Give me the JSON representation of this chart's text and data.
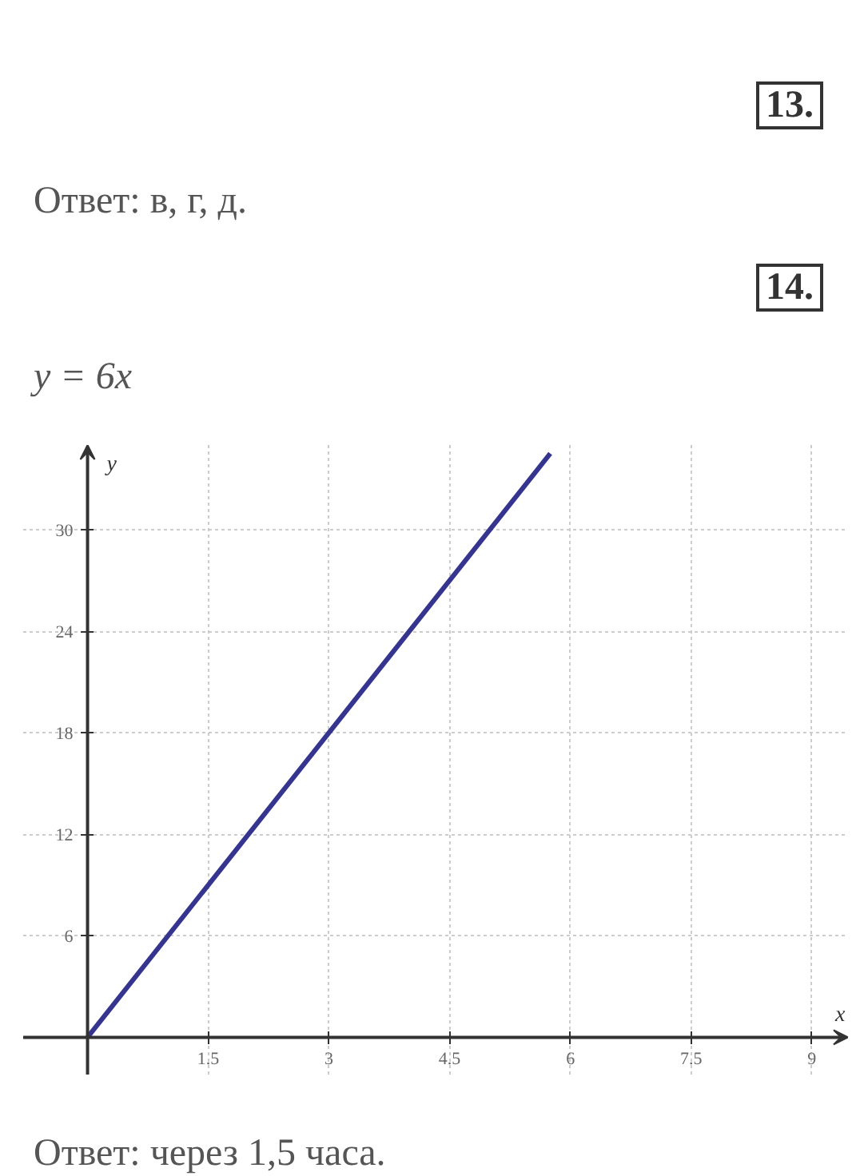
{
  "chart_data": {
    "type": "line",
    "xlabel": "x",
    "ylabel": "y",
    "x": [
      0,
      5.75
    ],
    "series": [
      {
        "color": "#35358f",
        "values": [
          0,
          34.5
        ]
      }
    ],
    "xlim": [
      -0.8,
      9.45
    ],
    "ylim": [
      -2.2,
      35
    ],
    "xticks": [
      1.5,
      3,
      4.5,
      6,
      7.5,
      9
    ],
    "yticks": [
      6,
      12,
      18,
      24,
      30
    ],
    "grid": true,
    "line_style": "solid",
    "annotations": [
      "13.",
      "Ответ: в, г, д.",
      "14.",
      "y = 6x",
      "Ответ: через 1,5 часа."
    ]
  }
}
